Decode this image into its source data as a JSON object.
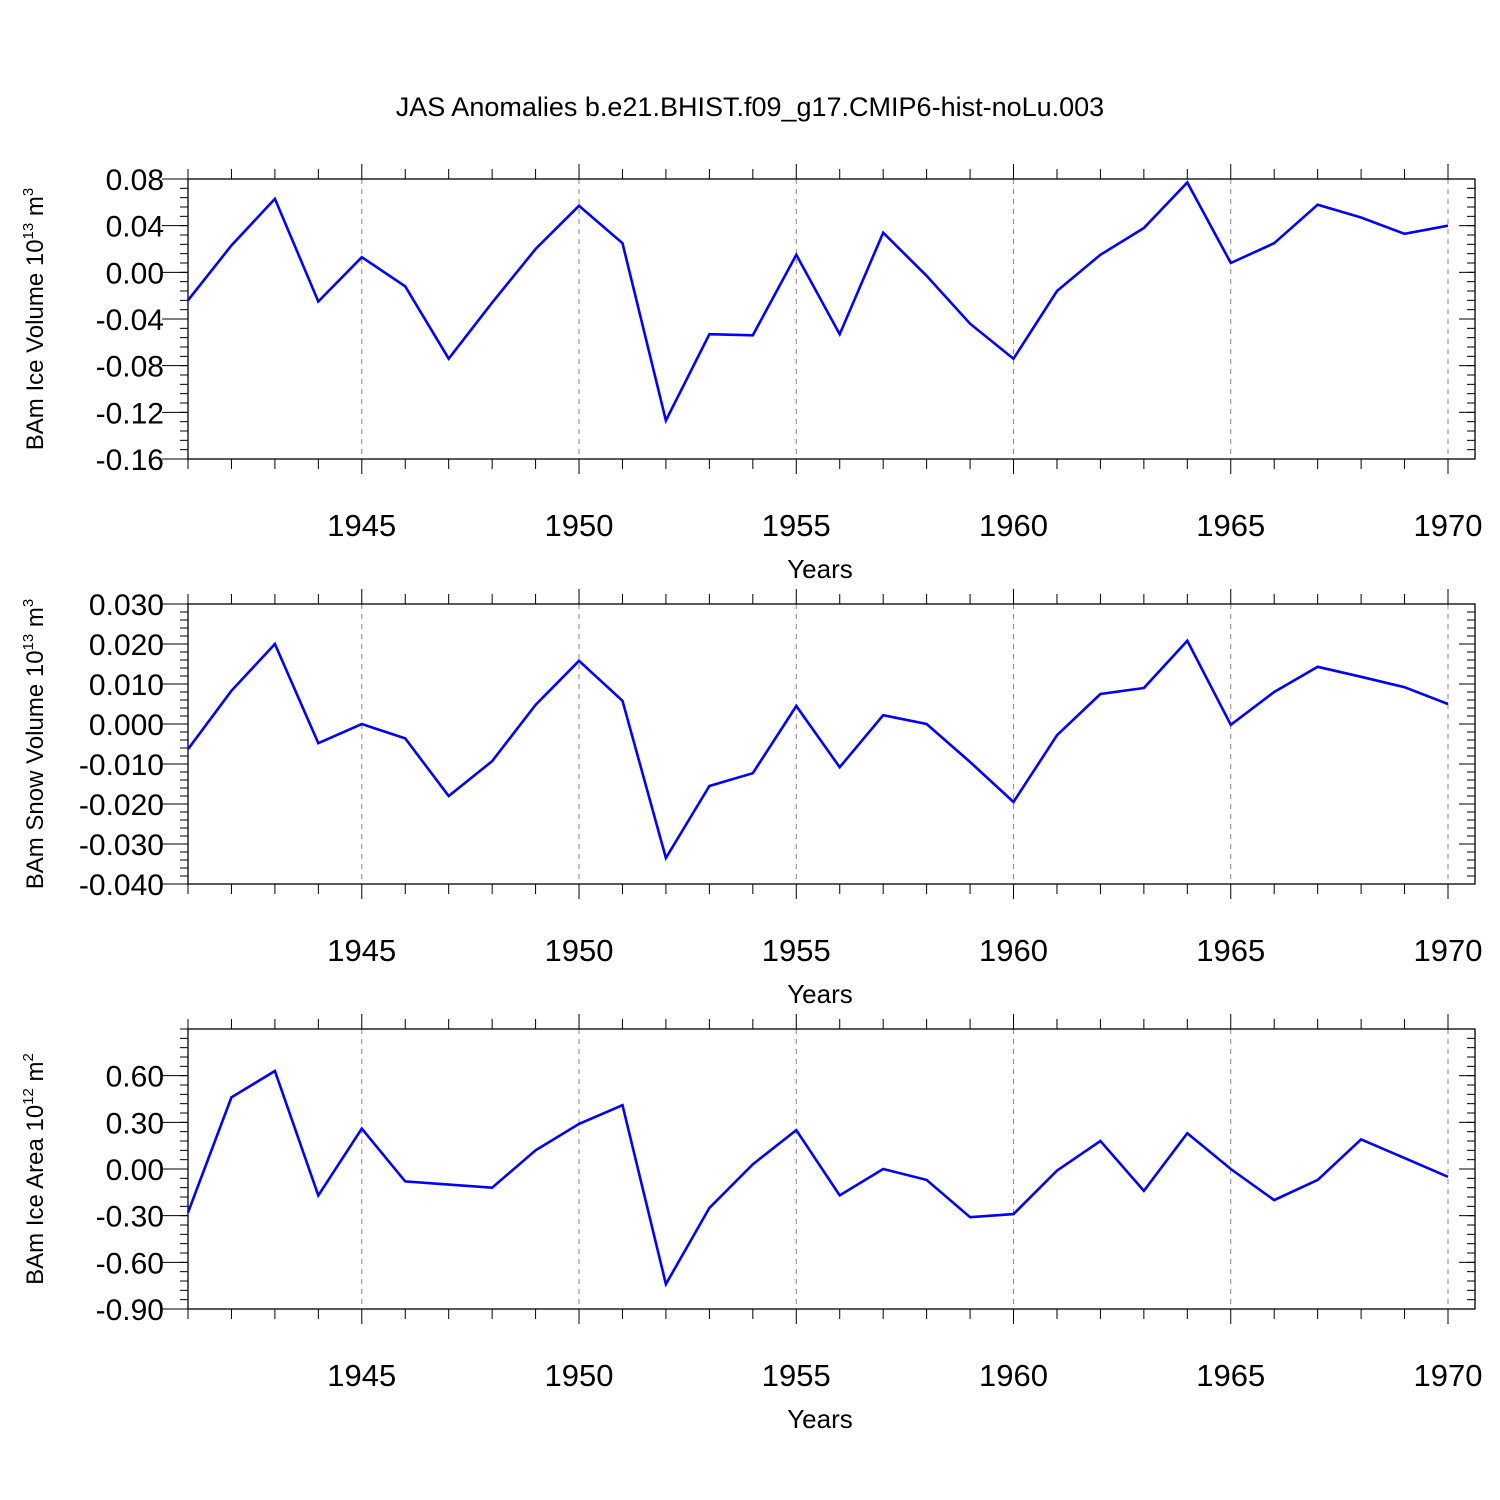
{
  "title": "JAS Anomalies b.e21.BHIST.f09_g17.CMIP6-hist-noLu.003",
  "colors": {
    "line": "#0000ff",
    "axis": "#000000",
    "grid": "#888888"
  },
  "chart_data": [
    {
      "type": "line",
      "ylabel": {
        "text": "BAm Ice Volume 10",
        "exp": "13",
        "unit": " m",
        "unit_exp": "3"
      },
      "xlabel": "Years",
      "xlim": [
        1941,
        1970
      ],
      "ylim": [
        -0.16,
        0.08
      ],
      "yticks": [
        0.08,
        0.04,
        0.0,
        -0.04,
        -0.08,
        -0.12,
        -0.16
      ],
      "ytick_labels": [
        "0.08",
        "0.04",
        "0.00",
        "-0.04",
        "-0.08",
        "-0.12",
        "-0.16"
      ],
      "xticks": [
        1945,
        1950,
        1955,
        1960,
        1965,
        1970
      ],
      "xtick_labels": [
        "1945",
        "1950",
        "1955",
        "1960",
        "1965",
        "1970"
      ],
      "grid": "vertical dashed at major x ticks",
      "x": [
        1941,
        1942,
        1943,
        1944,
        1945,
        1946,
        1947,
        1948,
        1949,
        1950,
        1951,
        1952,
        1953,
        1954,
        1955,
        1956,
        1957,
        1958,
        1959,
        1960,
        1961,
        1962,
        1963,
        1964,
        1965,
        1966,
        1967,
        1968,
        1969,
        1970
      ],
      "values": [
        -0.024,
        0.023,
        0.063,
        -0.025,
        0.013,
        -0.012,
        -0.074,
        -0.026,
        0.02,
        0.057,
        0.025,
        -0.127,
        -0.053,
        -0.054,
        0.015,
        -0.053,
        0.034,
        -0.003,
        -0.044,
        -0.074,
        -0.016,
        0.015,
        0.038,
        0.077,
        0.008,
        0.025,
        0.058,
        0.047,
        0.033,
        0.04
      ]
    },
    {
      "type": "line",
      "ylabel": {
        "text": "BAm Snow Volume 10",
        "exp": "13",
        "unit": " m",
        "unit_exp": "3"
      },
      "xlabel": "Years",
      "xlim": [
        1941,
        1970
      ],
      "ylim": [
        -0.04,
        0.03
      ],
      "yticks": [
        0.03,
        0.02,
        0.01,
        0.0,
        -0.01,
        -0.02,
        -0.03,
        -0.04
      ],
      "ytick_labels": [
        "0.030",
        "0.020",
        "0.010",
        "0.000",
        "-0.010",
        "-0.020",
        "-0.030",
        "-0.040"
      ],
      "xticks": [
        1945,
        1950,
        1955,
        1960,
        1965,
        1970
      ],
      "xtick_labels": [
        "1945",
        "1950",
        "1955",
        "1960",
        "1965",
        "1970"
      ],
      "grid": "vertical dashed at major x ticks",
      "x": [
        1941,
        1942,
        1943,
        1944,
        1945,
        1946,
        1947,
        1948,
        1949,
        1950,
        1951,
        1952,
        1953,
        1954,
        1955,
        1956,
        1957,
        1958,
        1959,
        1960,
        1961,
        1962,
        1963,
        1964,
        1965,
        1966,
        1967,
        1968,
        1969,
        1970
      ],
      "values": [
        -0.0063,
        0.0083,
        0.02,
        -0.0048,
        0.0,
        -0.0036,
        -0.018,
        -0.0093,
        0.0048,
        0.0158,
        0.0058,
        -0.0335,
        -0.0155,
        -0.0123,
        0.0045,
        -0.0108,
        0.0022,
        0.0,
        -0.0095,
        -0.0195,
        -0.0028,
        0.0075,
        0.009,
        0.0208,
        -0.0002,
        0.008,
        0.0143,
        0.0118,
        0.0092,
        0.005
      ]
    },
    {
      "type": "line",
      "ylabel": {
        "text": "BAm Ice Area 10",
        "exp": "12",
        "unit": " m",
        "unit_exp": "2"
      },
      "xlabel": "Years",
      "xlim": [
        1941,
        1970
      ],
      "ylim": [
        -0.9,
        0.9
      ],
      "yticks": [
        0.6,
        0.3,
        0.0,
        -0.3,
        -0.6,
        -0.9
      ],
      "ytick_labels": [
        "0.60",
        "0.30",
        "0.00",
        "-0.30",
        "-0.60",
        "-0.90"
      ],
      "xticks": [
        1945,
        1950,
        1955,
        1960,
        1965,
        1970
      ],
      "xtick_labels": [
        "1945",
        "1950",
        "1955",
        "1960",
        "1965",
        "1970"
      ],
      "grid": "vertical dashed at major x ticks",
      "x": [
        1941,
        1942,
        1943,
        1944,
        1945,
        1946,
        1947,
        1948,
        1949,
        1950,
        1951,
        1952,
        1953,
        1954,
        1955,
        1956,
        1957,
        1958,
        1959,
        1960,
        1961,
        1962,
        1963,
        1964,
        1965,
        1966,
        1967,
        1968,
        1969,
        1970
      ],
      "values": [
        -0.28,
        0.46,
        0.63,
        -0.17,
        0.26,
        -0.08,
        -0.1,
        -0.12,
        0.12,
        0.29,
        0.41,
        -0.74,
        -0.25,
        0.03,
        0.25,
        -0.17,
        0.0,
        -0.07,
        -0.31,
        -0.29,
        -0.01,
        0.18,
        -0.14,
        0.23,
        0.0,
        -0.2,
        -0.07,
        0.19,
        0.07,
        -0.05
      ]
    }
  ]
}
